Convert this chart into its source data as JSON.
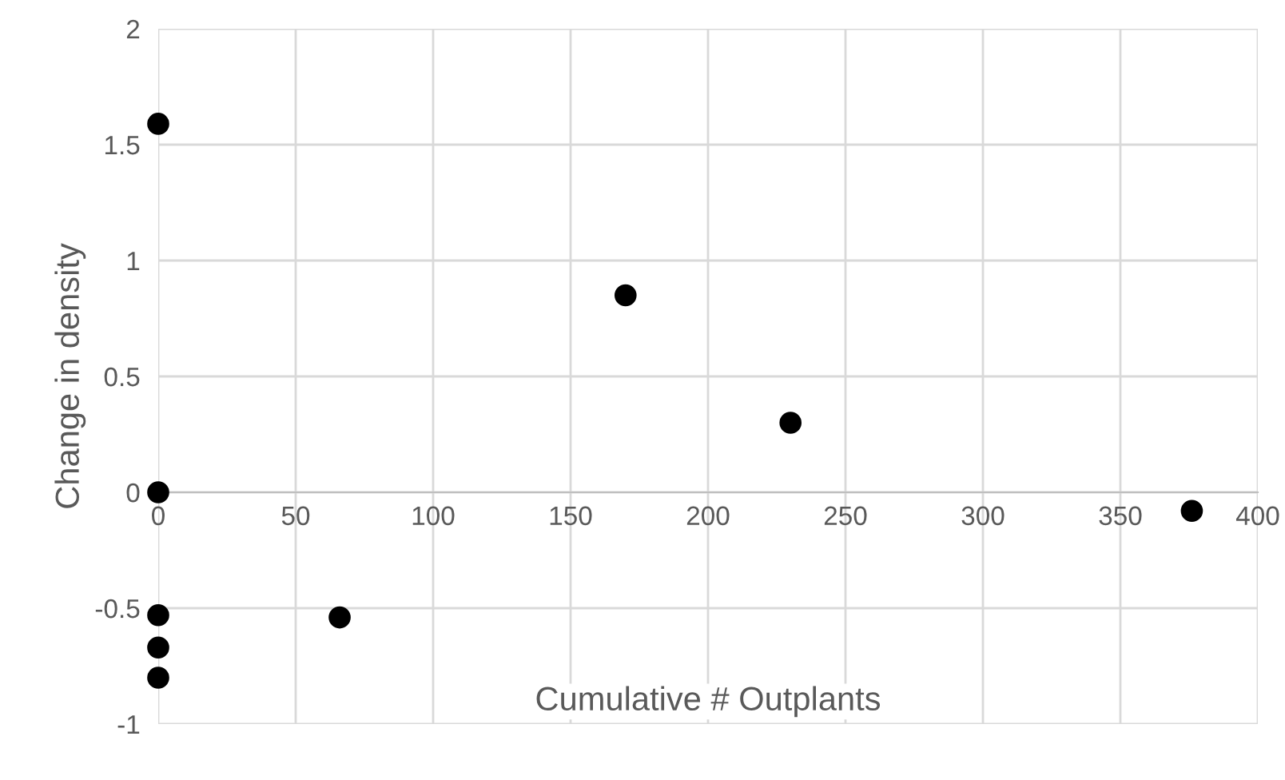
{
  "chart_data": {
    "type": "scatter",
    "xlabel": "Cumulative # Outplants",
    "ylabel": "Change in density",
    "x": [
      0,
      0,
      0,
      0,
      0,
      66,
      170,
      230,
      376
    ],
    "values": [
      1.59,
      0,
      -0.53,
      -0.67,
      -0.8,
      -0.54,
      0.85,
      0.3,
      -0.08
    ],
    "color": "#000000",
    "marker": "circle",
    "xlim": [
      0,
      400
    ],
    "xticks": [
      0,
      50,
      100,
      150,
      200,
      250,
      300,
      350,
      400
    ],
    "ylim": [
      -1,
      2
    ],
    "yticks": [
      -1,
      -0.5,
      0,
      0.5,
      1,
      1.5,
      2
    ],
    "grid": true,
    "legend": false
  }
}
